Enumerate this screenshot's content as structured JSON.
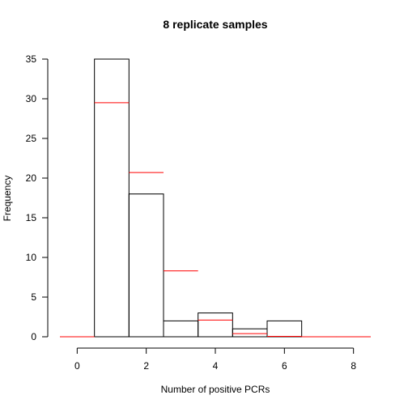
{
  "chart_data": {
    "type": "bar",
    "title": "8 replicate samples",
    "xlabel": "Number of positive PCRs",
    "ylabel": "Frequency",
    "xlim": [
      -0.5,
      8.5
    ],
    "ylim": [
      0,
      35
    ],
    "x_ticks": [
      0,
      2,
      4,
      6,
      8
    ],
    "y_ticks": [
      0,
      5,
      10,
      15,
      20,
      25,
      30,
      35
    ],
    "grid": false,
    "legend": "none",
    "series": [
      {
        "kind": "observed",
        "color": "#000000",
        "x": [
          0,
          1,
          2,
          3,
          4,
          5,
          6,
          7,
          8
        ],
        "values": [
          0,
          35,
          18,
          2,
          3,
          1,
          2,
          0,
          0
        ]
      },
      {
        "kind": "expected",
        "color": "#ff0000",
        "x": [
          0,
          1,
          2,
          3,
          4,
          5,
          6,
          7,
          8
        ],
        "values": [
          0,
          29.5,
          20.7,
          8.3,
          2.1,
          0.4,
          0.05,
          0,
          0
        ]
      }
    ]
  }
}
